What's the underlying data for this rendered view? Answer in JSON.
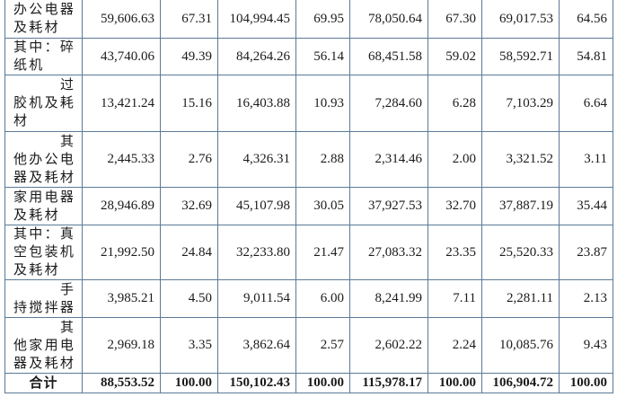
{
  "rows": [
    {
      "label": "办公电器及耗材",
      "indent": false,
      "values": [
        "59,606.63",
        "67.31",
        "104,994.45",
        "69.95",
        "78,050.64",
        "67.30",
        "69,017.53",
        "64.56"
      ]
    },
    {
      "label": "其中：碎纸机",
      "indent": false,
      "values": [
        "43,740.06",
        "49.39",
        "84,264.26",
        "56.14",
        "68,451.58",
        "59.02",
        "58,592.71",
        "54.81"
      ]
    },
    {
      "label": "过胶机及耗材",
      "indent": true,
      "values": [
        "13,421.24",
        "15.16",
        "16,403.88",
        "10.93",
        "7,284.60",
        "6.28",
        "7,103.29",
        "6.64"
      ]
    },
    {
      "label": "其他办公电器及耗材",
      "indent": true,
      "values": [
        "2,445.33",
        "2.76",
        "4,326.31",
        "2.88",
        "2,314.46",
        "2.00",
        "3,321.52",
        "3.11"
      ]
    },
    {
      "label": "家用电器及耗材",
      "indent": false,
      "values": [
        "28,946.89",
        "32.69",
        "45,107.98",
        "30.05",
        "37,927.53",
        "32.70",
        "37,887.19",
        "35.44"
      ]
    },
    {
      "label": "其中：真空包装机及耗材",
      "indent": false,
      "values": [
        "21,992.50",
        "24.84",
        "32,233.80",
        "21.47",
        "27,083.32",
        "23.35",
        "25,520.33",
        "23.87"
      ]
    },
    {
      "label": "手持搅拌器",
      "indent": true,
      "values": [
        "3,985.21",
        "4.50",
        "9,011.54",
        "6.00",
        "8,241.99",
        "7.11",
        "2,281.11",
        "2.13"
      ]
    },
    {
      "label": "其他家用电器及耗材",
      "indent": true,
      "values": [
        "2,969.18",
        "3.35",
        "3,862.64",
        "2.57",
        "2,602.22",
        "2.24",
        "10,085.76",
        "9.43"
      ]
    }
  ],
  "total": {
    "label": "合计",
    "values": [
      "88,553.52",
      "100.00",
      "150,102.43",
      "100.00",
      "115,978.17",
      "100.00",
      "106,904.72",
      "100.00"
    ]
  }
}
